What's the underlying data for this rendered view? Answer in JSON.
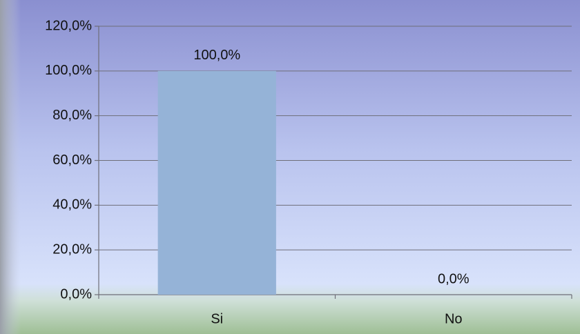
{
  "chart_data": {
    "type": "bar",
    "categories": [
      "Si",
      "No"
    ],
    "values": [
      100,
      0
    ],
    "value_labels": [
      "100,0%",
      "0,0%"
    ],
    "color": "#95b3d7",
    "ylim": [
      0,
      120
    ],
    "yticks": [
      {
        "value": 0,
        "label": "0,0%"
      },
      {
        "value": 20,
        "label": "20,0%"
      },
      {
        "value": 40,
        "label": "40,0%"
      },
      {
        "value": 60,
        "label": "60,0%"
      },
      {
        "value": 80,
        "label": "80,0%"
      },
      {
        "value": 100,
        "label": "100,0%"
      },
      {
        "value": 120,
        "label": "120,0%"
      }
    ],
    "grid": true
  }
}
